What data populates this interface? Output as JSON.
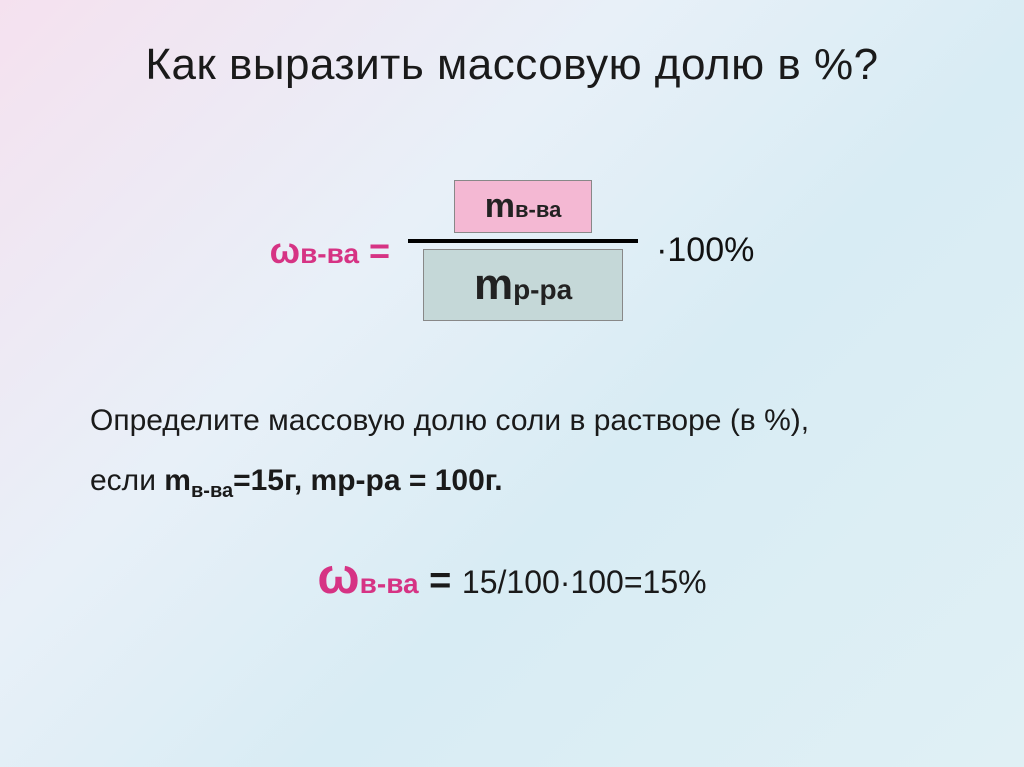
{
  "slide": {
    "title": "Как выразить массовую долю в %?",
    "formula": {
      "lhs_symbol": "ω",
      "lhs_sub": "в-ва",
      "lhs_eq": " = ",
      "numerator_sym": "m",
      "numerator_sub": "в-ва",
      "denominator_sym": "m",
      "denominator_sub": "р-ра",
      "rhs_suffix": "·100%",
      "colors": {
        "lhs_color": "#d63384",
        "numerator_bg": "#f4b8d3",
        "denominator_bg": "#c5d8d8",
        "frac_line": "#000000",
        "box_border": "#888888"
      },
      "fonts": {
        "lhs_size_pt": 27,
        "numerator_size_pt": 26,
        "denominator_size_pt": 33,
        "suffix_size_pt": 26
      }
    },
    "problem": {
      "line1_a": "Определите массовую долю соли в растворе (в %),",
      "line2_a": "если ",
      "m1_sym": "m",
      "m1_sub": "в-ва",
      "m1_val": "=15г, ",
      "m2": "mр-ра = 100г.",
      "font_size_pt": 22
    },
    "answer": {
      "omega": "ω",
      "omega_sub": "в-ва",
      "eq": " = ",
      "calc": "15/100·100=15%",
      "omega_color": "#d63384",
      "omega_size_pt": 38,
      "calc_size_pt": 24
    },
    "background": {
      "gradient": [
        "#f5e1ef",
        "#e8f0f8",
        "#d8ecf4",
        "#e0f0f5"
      ]
    }
  }
}
